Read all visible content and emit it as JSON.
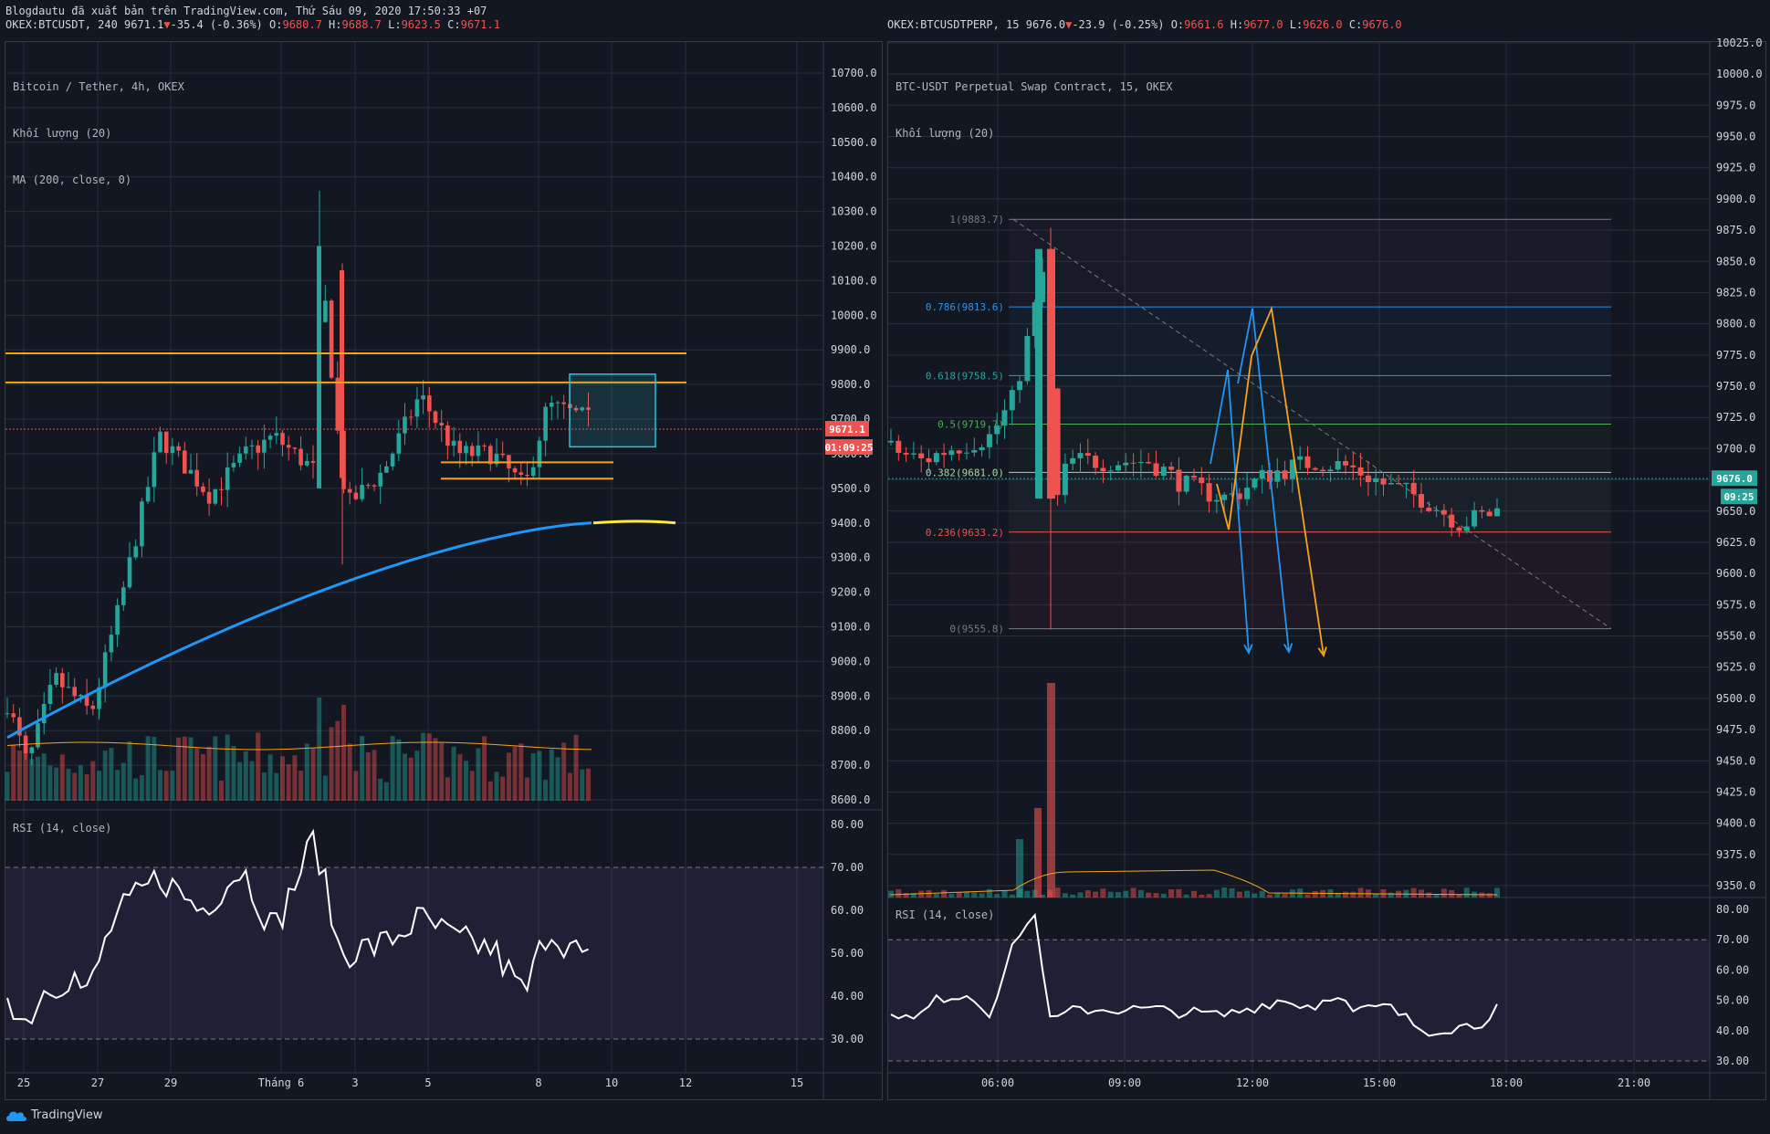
{
  "header": {
    "publisher": "Blogdautu đã xuất bản trên TradingView.com, Thứ Sáu 09, 2020 17:50:33 +07",
    "left_prefix": "OKEX:BTCUSDT, 240 9671.1",
    "left_change": "-35.4 (-0.36%)",
    "left_o_label": " O:",
    "left_o": "9680.7",
    "left_h_label": " H:",
    "left_h": "9688.7",
    "left_l_label": " L:",
    "left_l": "9623.5",
    "left_c_label": " C:",
    "left_c": "9671.1",
    "right_prefix": "OKEX:BTCUSDTPERP, 15 9676.0",
    "right_change": "-23.9 (-0.25%)",
    "right_o_label": " O:",
    "right_o": "9661.6",
    "right_h_label": " H:",
    "right_h": "9677.0",
    "right_l_label": " L:",
    "right_l": "9626.0",
    "right_c_label": " C:",
    "right_c": "9676.0"
  },
  "left": {
    "legend": [
      "Bitcoin / Tether, 4h, OKEX",
      "Khối lượng (20)",
      "MA (200, close, 0)"
    ],
    "price_ticks": [
      "10700.0",
      "10600.0",
      "10500.0",
      "10400.0",
      "10300.0",
      "10200.0",
      "10100.0",
      "10000.0",
      "9900.0",
      "9800.0",
      "9700.0",
      "9600.0",
      "9500.0",
      "9400.0",
      "9300.0",
      "9200.0",
      "9100.0",
      "9000.0",
      "8900.0",
      "8800.0",
      "8700.0",
      "8600.0"
    ],
    "last_price": "9671.1",
    "countdown": "01:09:25",
    "rsi_label": "RSI (14, close)",
    "rsi_ticks": [
      "80.00",
      "70.00",
      "60.00",
      "50.00",
      "40.00",
      "30.00"
    ],
    "time_ticks": [
      "25",
      "27",
      "29",
      "Tháng 6",
      "3",
      "5",
      "8",
      "10",
      "12",
      "15"
    ]
  },
  "right": {
    "legend": [
      "BTC-USDT Perpetual Swap Contract, 15, OKEX",
      "Khối lượng (20)"
    ],
    "price_ticks": [
      "10025.0",
      "10000.0",
      "9975.0",
      "9950.0",
      "9925.0",
      "9900.0",
      "9875.0",
      "9850.0",
      "9825.0",
      "9800.0",
      "9775.0",
      "9750.0",
      "9725.0",
      "9700.0",
      "9675.0",
      "9650.0",
      "9625.0",
      "9600.0",
      "9575.0",
      "9550.0",
      "9525.0",
      "9500.0",
      "9475.0",
      "9450.0",
      "9425.0",
      "9400.0",
      "9375.0",
      "9350.0"
    ],
    "last_price": "9676.0",
    "countdown": "09:25",
    "fib_labels": [
      "1(9883.7)",
      "0.786(9813.6)",
      "0.618(9758.5)",
      "0.5(9719.7)",
      "0.382(9681.0)",
      "0.236(9633.2)",
      "0(9555.8)"
    ],
    "rsi_label": "RSI (14, close)",
    "rsi_ticks": [
      "80.00",
      "70.00",
      "60.00",
      "50.00",
      "40.00",
      "30.00"
    ],
    "time_ticks": [
      "06:00",
      "09:00",
      "12:00",
      "15:00",
      "18:00",
      "21:00"
    ]
  },
  "footer": {
    "brand": "TradingView"
  },
  "colors": {
    "bg": "#131722",
    "up": "#26a69a",
    "down": "#ef5350",
    "orange": "#f7a21b",
    "blue": "#2196f3",
    "ma_yellow": "#ffeb3b",
    "box": "#26c6da"
  }
}
